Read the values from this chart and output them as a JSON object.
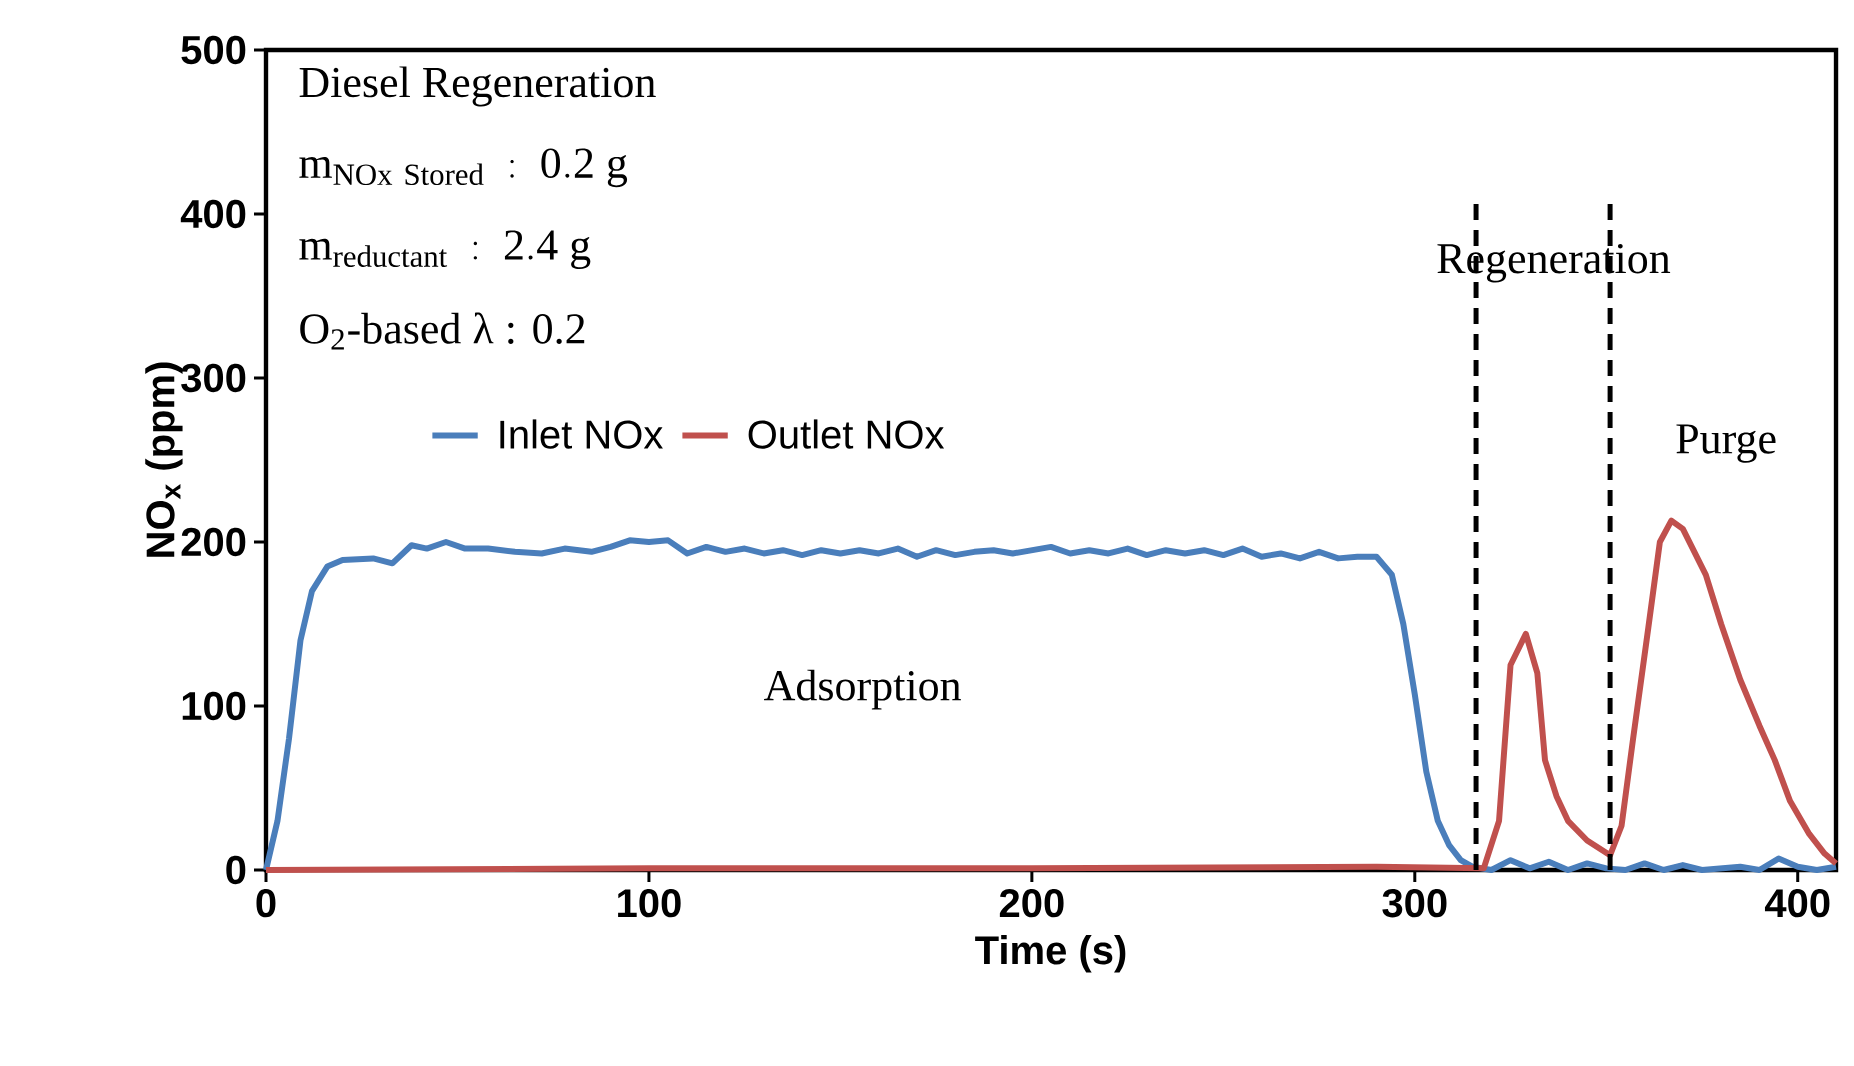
{
  "chart_data": {
    "type": "line",
    "xlabel": "Time (s)",
    "ylabel": "**NO$_{x}$ (ppm)**",
    "xlim": [
      0,
      410
    ],
    "ylim": [
      0,
      500
    ],
    "xticks": [
      0,
      100,
      200,
      300,
      400
    ],
    "yticks": [
      0,
      100,
      200,
      300,
      400,
      500
    ],
    "grid": false,
    "legend": "left",
    "marker": "none",
    "line_style": "solid",
    "series": [
      {
        "name": "Inlet NOx",
        "color": "#4a7ebb",
        "x": [
          0,
          3,
          6,
          9,
          12,
          16,
          20,
          28,
          33,
          38,
          42,
          47,
          52,
          58,
          65,
          72,
          78,
          85,
          90,
          95,
          100,
          105,
          110,
          115,
          120,
          125,
          130,
          135,
          140,
          145,
          150,
          155,
          160,
          165,
          170,
          175,
          180,
          185,
          190,
          195,
          200,
          205,
          210,
          215,
          220,
          225,
          230,
          235,
          240,
          245,
          250,
          255,
          260,
          265,
          270,
          275,
          280,
          285,
          290,
          294,
          297,
          300,
          303,
          306,
          309,
          312,
          315,
          320,
          325,
          330,
          335,
          340,
          345,
          350,
          355,
          360,
          365,
          370,
          375,
          380,
          385,
          390,
          395,
          400,
          405,
          410
        ],
        "values": [
          0,
          30,
          80,
          140,
          170,
          185,
          189,
          190,
          187,
          198,
          196,
          200,
          196,
          196,
          194,
          193,
          196,
          194,
          197,
          201,
          200,
          201,
          193,
          197,
          194,
          196,
          193,
          195,
          192,
          195,
          193,
          195,
          193,
          196,
          191,
          195,
          192,
          194,
          195,
          193,
          195,
          197,
          193,
          195,
          193,
          196,
          192,
          195,
          193,
          195,
          192,
          196,
          191,
          193,
          190,
          194,
          190,
          191,
          191,
          180,
          150,
          107,
          60,
          30,
          15,
          6,
          2,
          0,
          6,
          1,
          5,
          0,
          4,
          1,
          0,
          4,
          0,
          3,
          0,
          1,
          2,
          0,
          7,
          2,
          0,
          2
        ]
      },
      {
        "name": "Outlet NOx",
        "color": "#c0504d",
        "x": [
          0,
          100,
          200,
          290,
          318,
          322,
          325,
          329,
          332,
          334,
          337,
          340,
          345,
          351,
          354,
          357,
          361,
          364,
          367,
          370,
          376,
          380,
          385,
          390,
          394,
          398,
          403,
          407,
          410
        ],
        "values": [
          0,
          1,
          1,
          2,
          1,
          30,
          125,
          144,
          120,
          67,
          45,
          30,
          18,
          9,
          27,
          80,
          148,
          200,
          213,
          208,
          180,
          150,
          116,
          88,
          67,
          42,
          22,
          10,
          4
        ]
      }
    ],
    "ref_lines": [
      {
        "axis": "x",
        "value": 316,
        "color": "#000000",
        "line_style": "dashed"
      },
      {
        "axis": "x",
        "value": 351,
        "color": "#000000",
        "line_style": "dashed"
      }
    ],
    "annotations": [
      "Diesel Regeneration",
      "\\mathrm{m}_{\\mathrm{NOx\\ Stored}}\\ \\ \\mathrm{:\\ 0.2\\ g}",
      "\\mathrm{m}_{\\mathrm{reductant}}\\ \\ \\mathrm{:\\ 2.4\\ g}",
      "O$_{2}$-based λ : 0.2",
      "Adsorption",
      "Regeneration",
      "Purge"
    ]
  }
}
